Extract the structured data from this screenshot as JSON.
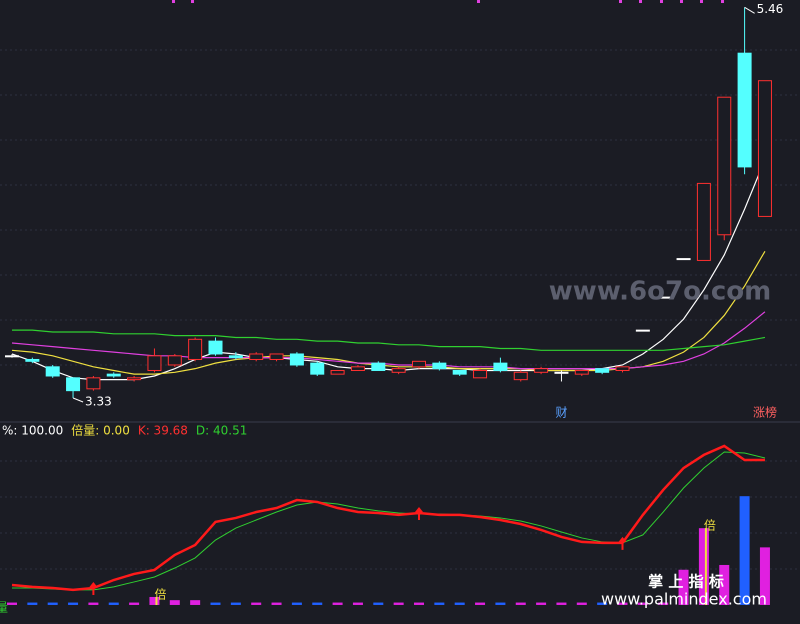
{
  "chart_data": [
    {
      "type": "candlestick",
      "open": [
        3.56,
        3.54,
        3.5,
        3.44,
        3.38,
        3.46,
        3.43,
        3.48,
        3.51,
        3.54,
        3.64,
        3.56,
        3.54,
        3.54,
        3.57,
        3.52,
        3.46,
        3.48,
        3.52,
        3.47,
        3.5,
        3.52,
        3.48,
        3.44,
        3.52,
        3.43,
        3.47,
        3.47,
        3.46,
        3.49,
        3.48,
        3.7,
        3.88,
        4.09,
        4.08,
        4.22,
        5.21,
        4.32
      ],
      "close": [
        3.56,
        3.53,
        3.45,
        3.37,
        3.44,
        3.45,
        3.44,
        3.56,
        3.56,
        3.65,
        3.57,
        3.55,
        3.57,
        3.57,
        3.51,
        3.46,
        3.48,
        3.5,
        3.48,
        3.49,
        3.53,
        3.49,
        3.46,
        3.48,
        3.48,
        3.47,
        3.49,
        3.47,
        3.48,
        3.47,
        3.5,
        3.7,
        3.88,
        4.09,
        4.5,
        4.97,
        4.59,
        5.06
      ],
      "high": [
        3.57,
        3.55,
        3.51,
        3.44,
        3.45,
        3.47,
        3.45,
        3.6,
        3.57,
        3.66,
        3.66,
        3.58,
        3.58,
        3.57,
        3.58,
        3.53,
        3.48,
        3.51,
        3.53,
        3.5,
        3.53,
        3.53,
        3.48,
        3.49,
        3.55,
        3.48,
        3.5,
        3.48,
        3.48,
        3.49,
        3.5,
        3.7,
        3.88,
        4.09,
        4.5,
        4.97,
        5.46,
        5.06
      ],
      "low": [
        3.55,
        3.52,
        3.44,
        3.33,
        3.37,
        3.44,
        3.42,
        3.47,
        3.5,
        3.53,
        3.56,
        3.54,
        3.53,
        3.53,
        3.5,
        3.45,
        3.46,
        3.48,
        3.48,
        3.46,
        3.49,
        3.48,
        3.45,
        3.44,
        3.47,
        3.42,
        3.46,
        3.42,
        3.45,
        3.46,
        3.47,
        3.7,
        3.88,
        4.09,
        4.08,
        4.19,
        4.55,
        4.32
      ],
      "up_color": "#ff3030",
      "down_color": "#54ffff",
      "flat_color": "#ffffff",
      "lines": [
        {
          "color": "#ffffff",
          "values": [
            3.57,
            3.53,
            3.48,
            3.44,
            3.43,
            3.43,
            3.43,
            3.45,
            3.49,
            3.54,
            3.58,
            3.57,
            3.55,
            3.55,
            3.54,
            3.53,
            3.5,
            3.49,
            3.49,
            3.48,
            3.49,
            3.49,
            3.49,
            3.48,
            3.48,
            3.48,
            3.48,
            3.48,
            3.48,
            3.49,
            3.51,
            3.57,
            3.65,
            3.76,
            3.92,
            4.11,
            4.36,
            4.63
          ]
        },
        {
          "color": "#f0e040",
          "values": [
            3.59,
            3.58,
            3.56,
            3.53,
            3.5,
            3.48,
            3.46,
            3.46,
            3.47,
            3.49,
            3.52,
            3.54,
            3.55,
            3.56,
            3.56,
            3.55,
            3.54,
            3.52,
            3.51,
            3.5,
            3.5,
            3.5,
            3.49,
            3.49,
            3.49,
            3.49,
            3.48,
            3.48,
            3.48,
            3.48,
            3.49,
            3.5,
            3.53,
            3.58,
            3.66,
            3.78,
            3.94,
            4.13
          ]
        },
        {
          "color": "#e040e0",
          "values": [
            3.63,
            3.62,
            3.61,
            3.6,
            3.59,
            3.58,
            3.57,
            3.56,
            3.56,
            3.55,
            3.55,
            3.55,
            3.55,
            3.55,
            3.55,
            3.54,
            3.53,
            3.52,
            3.52,
            3.51,
            3.51,
            3.51,
            3.5,
            3.5,
            3.5,
            3.49,
            3.49,
            3.49,
            3.49,
            3.49,
            3.49,
            3.5,
            3.51,
            3.53,
            3.57,
            3.63,
            3.71,
            3.8
          ]
        },
        {
          "color": "#30d030",
          "values": [
            3.7,
            3.7,
            3.69,
            3.69,
            3.69,
            3.68,
            3.68,
            3.68,
            3.67,
            3.67,
            3.67,
            3.66,
            3.66,
            3.65,
            3.65,
            3.64,
            3.64,
            3.63,
            3.63,
            3.62,
            3.62,
            3.61,
            3.61,
            3.61,
            3.6,
            3.6,
            3.59,
            3.59,
            3.59,
            3.59,
            3.59,
            3.59,
            3.59,
            3.6,
            3.61,
            3.62,
            3.64,
            3.66
          ]
        }
      ],
      "high_label": "5.46",
      "low_label": "3.33",
      "event_labels": [
        {
          "text": "财",
          "index": 27,
          "color": "#5aa0ff"
        },
        {
          "text": "涨榜",
          "index": 37,
          "color": "#ff6060"
        }
      ],
      "ylim": [
        3.21,
        5.5
      ]
    },
    {
      "type": "kd",
      "header": [
        {
          "text": "%: 100.00",
          "color": "#ffffff"
        },
        {
          "text": "倍量: 0.00",
          "color": "#f0e040"
        },
        {
          "text": "K: 39.68",
          "color": "#ff3030"
        },
        {
          "text": "D: 40.51",
          "color": "#30d030"
        }
      ],
      "series": [
        {
          "color": "#ff1a1a",
          "values": [
            12.5,
            11.3,
            10.6,
            9.4,
            10.6,
            15.6,
            19.4,
            21.9,
            31.3,
            37.5,
            51.9,
            54.4,
            58.1,
            60.6,
            65.6,
            64.4,
            60.6,
            58.1,
            57.5,
            56.3,
            57.5,
            56.3,
            56.3,
            55,
            53.1,
            50.6,
            46.9,
            42.5,
            39.4,
            38.8,
            38.8,
            56.3,
            71.9,
            85.6,
            93.8,
            99.4,
            90.6,
            90.6
          ]
        },
        {
          "color": "#30d030",
          "values": [
            10.6,
            10.6,
            10,
            9.4,
            9.4,
            11.3,
            14.4,
            17.5,
            23.1,
            29.4,
            40.6,
            48.1,
            53.1,
            58.1,
            62.5,
            64.4,
            63.1,
            60.6,
            58.8,
            57.5,
            56.9,
            56.9,
            56.3,
            55.6,
            54.4,
            52.5,
            49.4,
            45.6,
            41.9,
            39.4,
            38.8,
            43.8,
            58.1,
            73.1,
            85.6,
            95.6,
            95,
            91.9
          ]
        }
      ],
      "bars": [
        1.5,
        1.5,
        1.5,
        1.5,
        1.5,
        1.5,
        1.5,
        5,
        3,
        3,
        1.5,
        1.5,
        1.5,
        1.5,
        1.5,
        1.5,
        1.5,
        1.5,
        1.5,
        1.5,
        1.5,
        1.5,
        1.5,
        1.5,
        1.5,
        1.5,
        1.5,
        1.5,
        1.5,
        1.5,
        1.5,
        1.5,
        1.5,
        22,
        48,
        25,
        68,
        36
      ],
      "bar_up_color": "#e020e0",
      "bar_down_color": "#2060ff",
      "signal_labels": [
        {
          "text": "倍",
          "index": 7
        },
        {
          "text": "倍",
          "index": 34
        }
      ],
      "signal_color": "#f0e040",
      "arrows": [
        4,
        20,
        30
      ],
      "corner_label": "量",
      "ylim": [
        -9.4,
        112.5
      ]
    }
  ],
  "watermarks": [
    "www.6o7o.com",
    "掌 上 指 标",
    "www.palmindex.com"
  ]
}
